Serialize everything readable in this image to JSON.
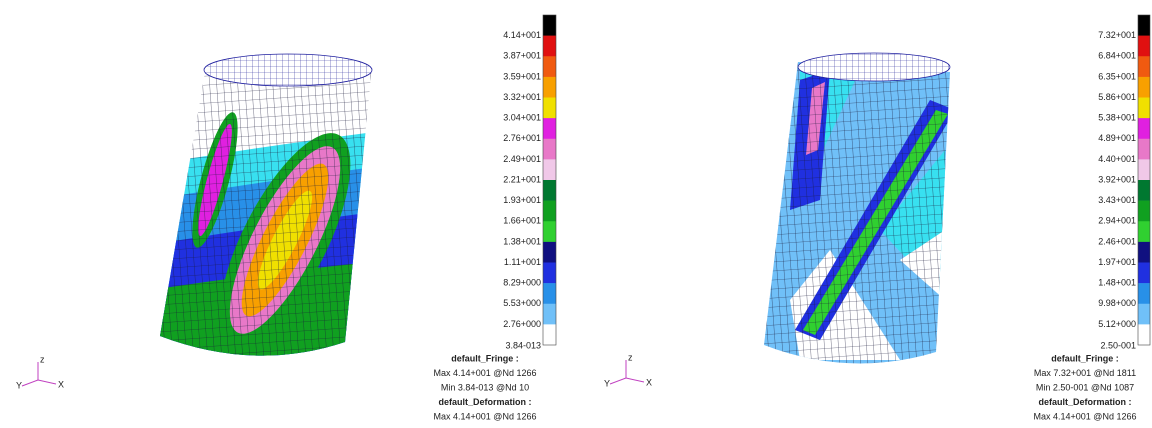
{
  "panels": [
    {
      "legend": {
        "labels": [
          "4.14+001",
          "3.87+001",
          "3.59+001",
          "3.32+001",
          "3.04+001",
          "2.76+001",
          "2.49+001",
          "2.21+001",
          "1.93+001",
          "1.66+001",
          "1.38+001",
          "1.11+001",
          "8.29+000",
          "5.53+000",
          "2.76+000",
          "3.84-013"
        ],
        "colors": [
          "#000000",
          "#e01010",
          "#f05a10",
          "#f8a000",
          "#f0e000",
          "#e020e0",
          "#e878c8",
          "#f0c8e8",
          "#007830",
          "#10a020",
          "#30d030",
          "#101080",
          "#2030e0",
          "#2890e8",
          "#70c0f8",
          "#ffffff"
        ]
      },
      "info": [
        "default_Fringe :",
        "Max 4.14+001 @Nd 1266",
        "Min 3.84-013 @Nd 10",
        "default_Deformation :",
        "Max 4.14+001 @Nd 1266"
      ],
      "axes": [
        "z",
        "Y",
        "X"
      ]
    },
    {
      "legend": {
        "labels": [
          "7.32+001",
          "6.84+001",
          "6.35+001",
          "5.86+001",
          "5.38+001",
          "4.89+001",
          "4.40+001",
          "3.92+001",
          "3.43+001",
          "2.94+001",
          "2.46+001",
          "1.97+001",
          "1.48+001",
          "9.98+000",
          "5.12+000",
          "2.50-001"
        ],
        "colors": [
          "#000000",
          "#e01010",
          "#f05a10",
          "#f8a000",
          "#f0e000",
          "#e020e0",
          "#e878c8",
          "#f0c8e8",
          "#007830",
          "#10a020",
          "#30d030",
          "#101080",
          "#2030e0",
          "#2890e8",
          "#70c0f8",
          "#ffffff"
        ]
      },
      "info": [
        "default_Fringe :",
        "Max 7.32+001 @Nd 1811",
        "Min 2.50-001 @Nd 1087",
        "default_Deformation :",
        "Max 4.14+001 @Nd 1266"
      ],
      "axes": [
        "z",
        "Y",
        "X"
      ]
    }
  ]
}
